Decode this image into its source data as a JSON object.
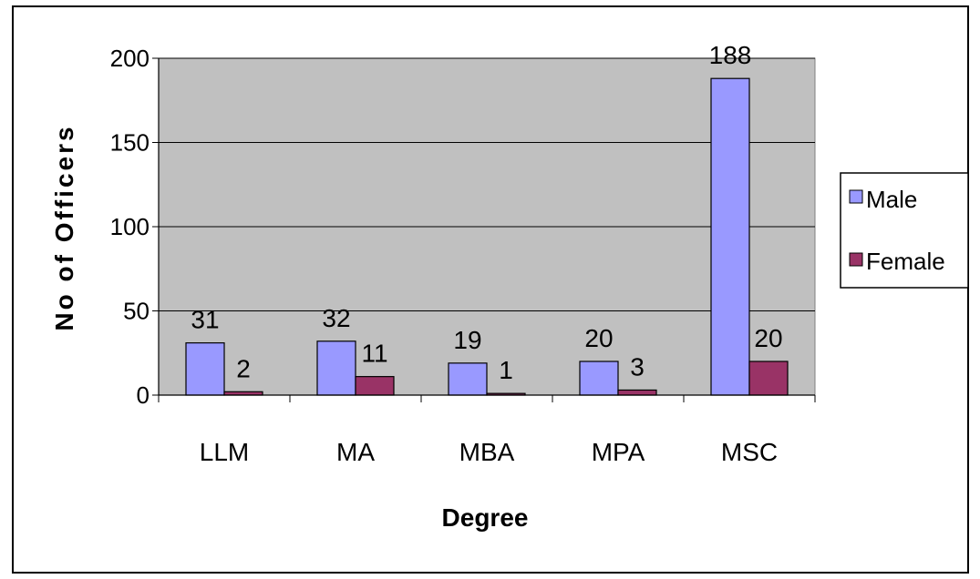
{
  "chart_data": {
    "type": "bar",
    "title": "",
    "xlabel": "Degree",
    "ylabel": "No of Officers",
    "categories": [
      "LLM",
      "MA",
      "MBA",
      "MPA",
      "MSC"
    ],
    "series": [
      {
        "name": "Male",
        "values": [
          31,
          32,
          19,
          20,
          188
        ],
        "color": "#9999ff"
      },
      {
        "name": "Female",
        "values": [
          2,
          11,
          1,
          3,
          20
        ],
        "color": "#993366"
      }
    ],
    "ylim": [
      0,
      200
    ],
    "yticks": [
      0,
      50,
      100,
      150,
      200
    ],
    "grid": true,
    "plot_background": "#c0c0c0",
    "legend_position": "right"
  }
}
